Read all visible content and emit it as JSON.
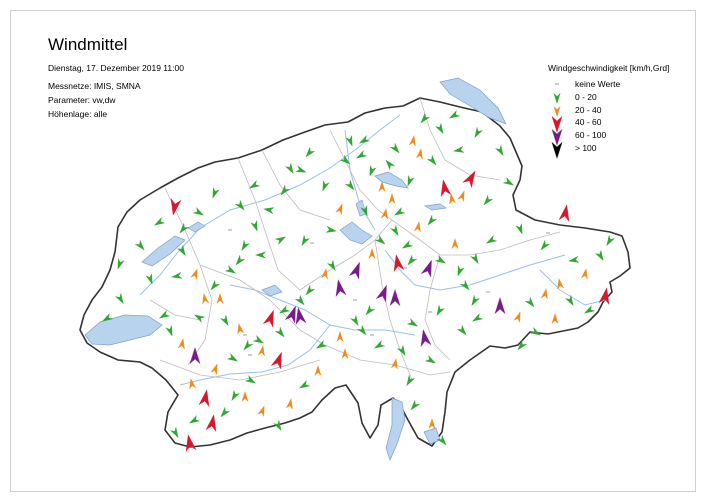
{
  "title": "Windmittel",
  "datetime": "Dienstag, 17. Dezember 2019 11:00",
  "networks": "Messnetze: IMIS, SMNA",
  "parameter": "Parameter: vw,dw",
  "elevation": "Höhenlage: alle",
  "legend": {
    "title": "Windgeschwindigkeit [km/h,Grd]",
    "items": [
      {
        "label": "keine Werte",
        "color": "#9e9e9e",
        "kind": "dash"
      },
      {
        "label": "0 - 20",
        "color": "#2ea830",
        "kind": "arrow"
      },
      {
        "label": "20 - 40",
        "color": "#f08a1a",
        "kind": "arrow"
      },
      {
        "label": "40 - 60",
        "color": "#d8182a",
        "kind": "arrow"
      },
      {
        "label": "60 - 100",
        "color": "#7b1a8c",
        "kind": "arrow"
      },
      {
        "label": "> 100",
        "color": "#000000",
        "kind": "arrow"
      }
    ]
  },
  "colors": {
    "border": "#333333",
    "lakes": "#b8d3ee",
    "rivers": "#9ac0ea",
    "cantons": "#bdbdbd"
  }
}
